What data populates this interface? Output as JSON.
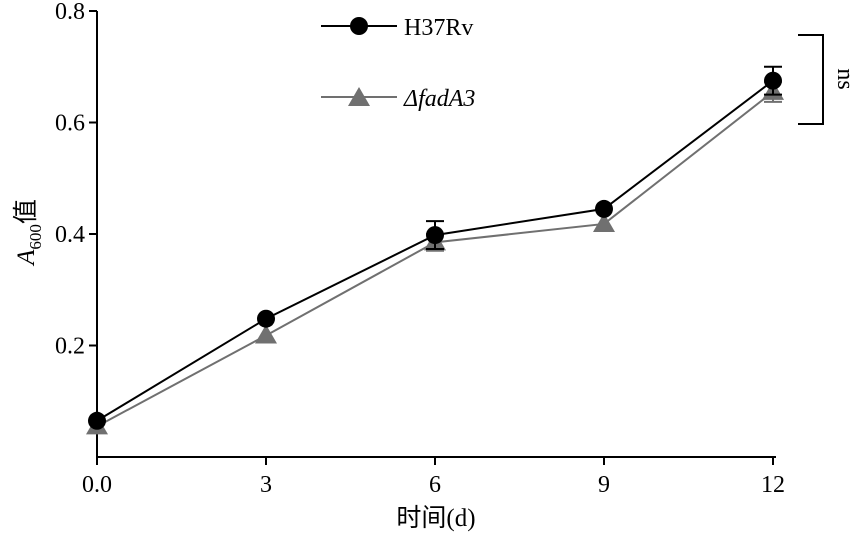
{
  "chart_data": {
    "type": "line",
    "x": [
      0,
      3,
      6,
      9,
      12
    ],
    "xlim": [
      0,
      12
    ],
    "ylim": [
      0,
      0.8
    ],
    "xticks": [
      0,
      3,
      6,
      9,
      12
    ],
    "yticks": [
      0.2,
      0.4,
      0.6,
      0.8
    ],
    "xtick_labels": [
      "0.0",
      "3",
      "6",
      "9",
      "12"
    ],
    "ytick_labels": [
      "0.2",
      "0.4",
      "0.6",
      "0.8"
    ],
    "xlabel": "时间(d)",
    "ylabel": {
      "base": "A",
      "sub": "600",
      "suffix": "值"
    },
    "legend_position": "top-center",
    "grid": false,
    "series": [
      {
        "name": "H37Rv",
        "marker": "circle",
        "color": "#000000",
        "values": [
          0.065,
          0.248,
          0.398,
          0.445,
          0.675
        ],
        "errors": [
          0,
          0,
          0.025,
          0,
          0.025
        ]
      },
      {
        "name": "ΔfadA3",
        "name_style": "italic",
        "marker": "triangle",
        "color": "#707070",
        "values": [
          0.055,
          0.218,
          0.385,
          0.418,
          0.655
        ],
        "errors": [
          0,
          0,
          0.015,
          0,
          0.018
        ]
      }
    ],
    "annotations": [
      {
        "text": "ns",
        "bracket_span": [
          0.6,
          0.78
        ]
      }
    ]
  }
}
